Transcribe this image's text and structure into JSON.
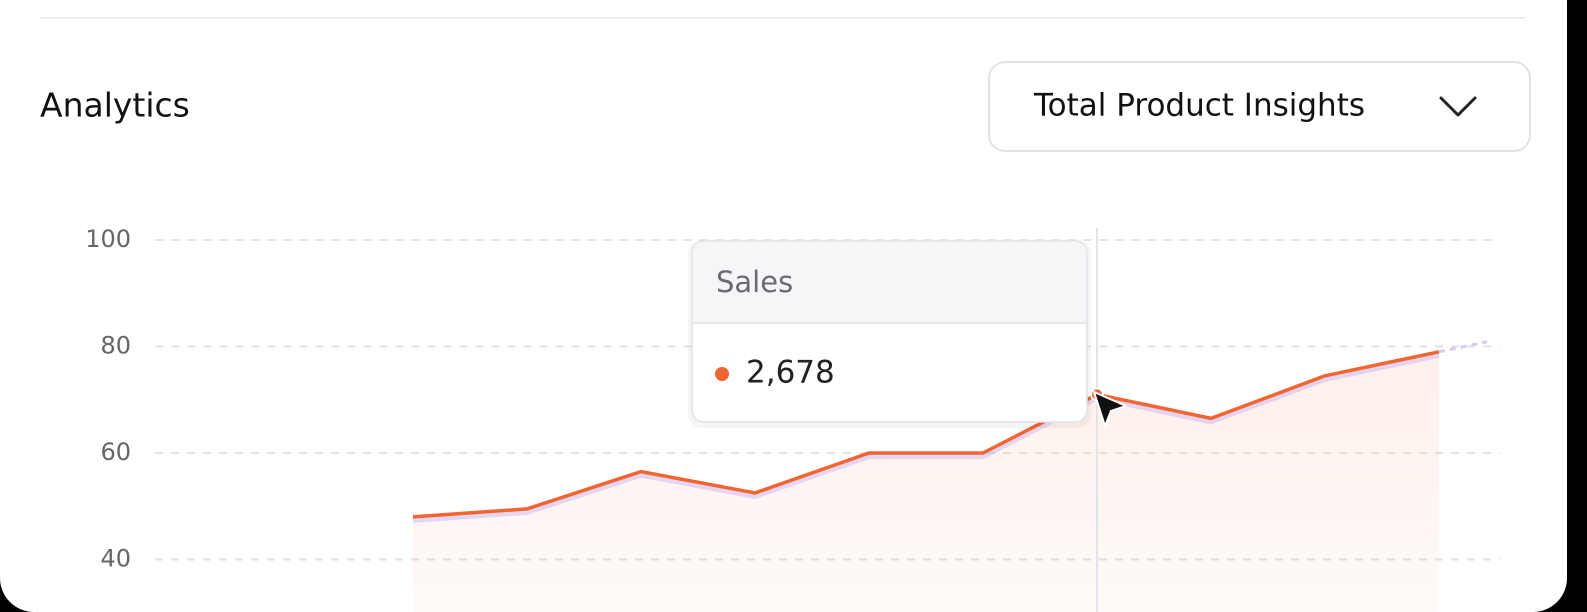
{
  "header": {
    "title": "Analytics"
  },
  "dropdown": {
    "label": "Total Product Insights"
  },
  "chart_data": {
    "type": "line",
    "categories": [
      null,
      null,
      null,
      null,
      null,
      null,
      null,
      null,
      null,
      null
    ],
    "series": [
      {
        "name": "Sales",
        "color": "#f26430",
        "values": [
          48,
          49.5,
          56.5,
          52.5,
          60,
          60,
          71,
          66.5,
          74.5,
          79
        ]
      }
    ],
    "ylim": [
      30,
      100
    ],
    "yticks": [
      40,
      60,
      80,
      100
    ],
    "grid": true,
    "tooltip": {
      "index": 6,
      "label": "2,678"
    }
  }
}
